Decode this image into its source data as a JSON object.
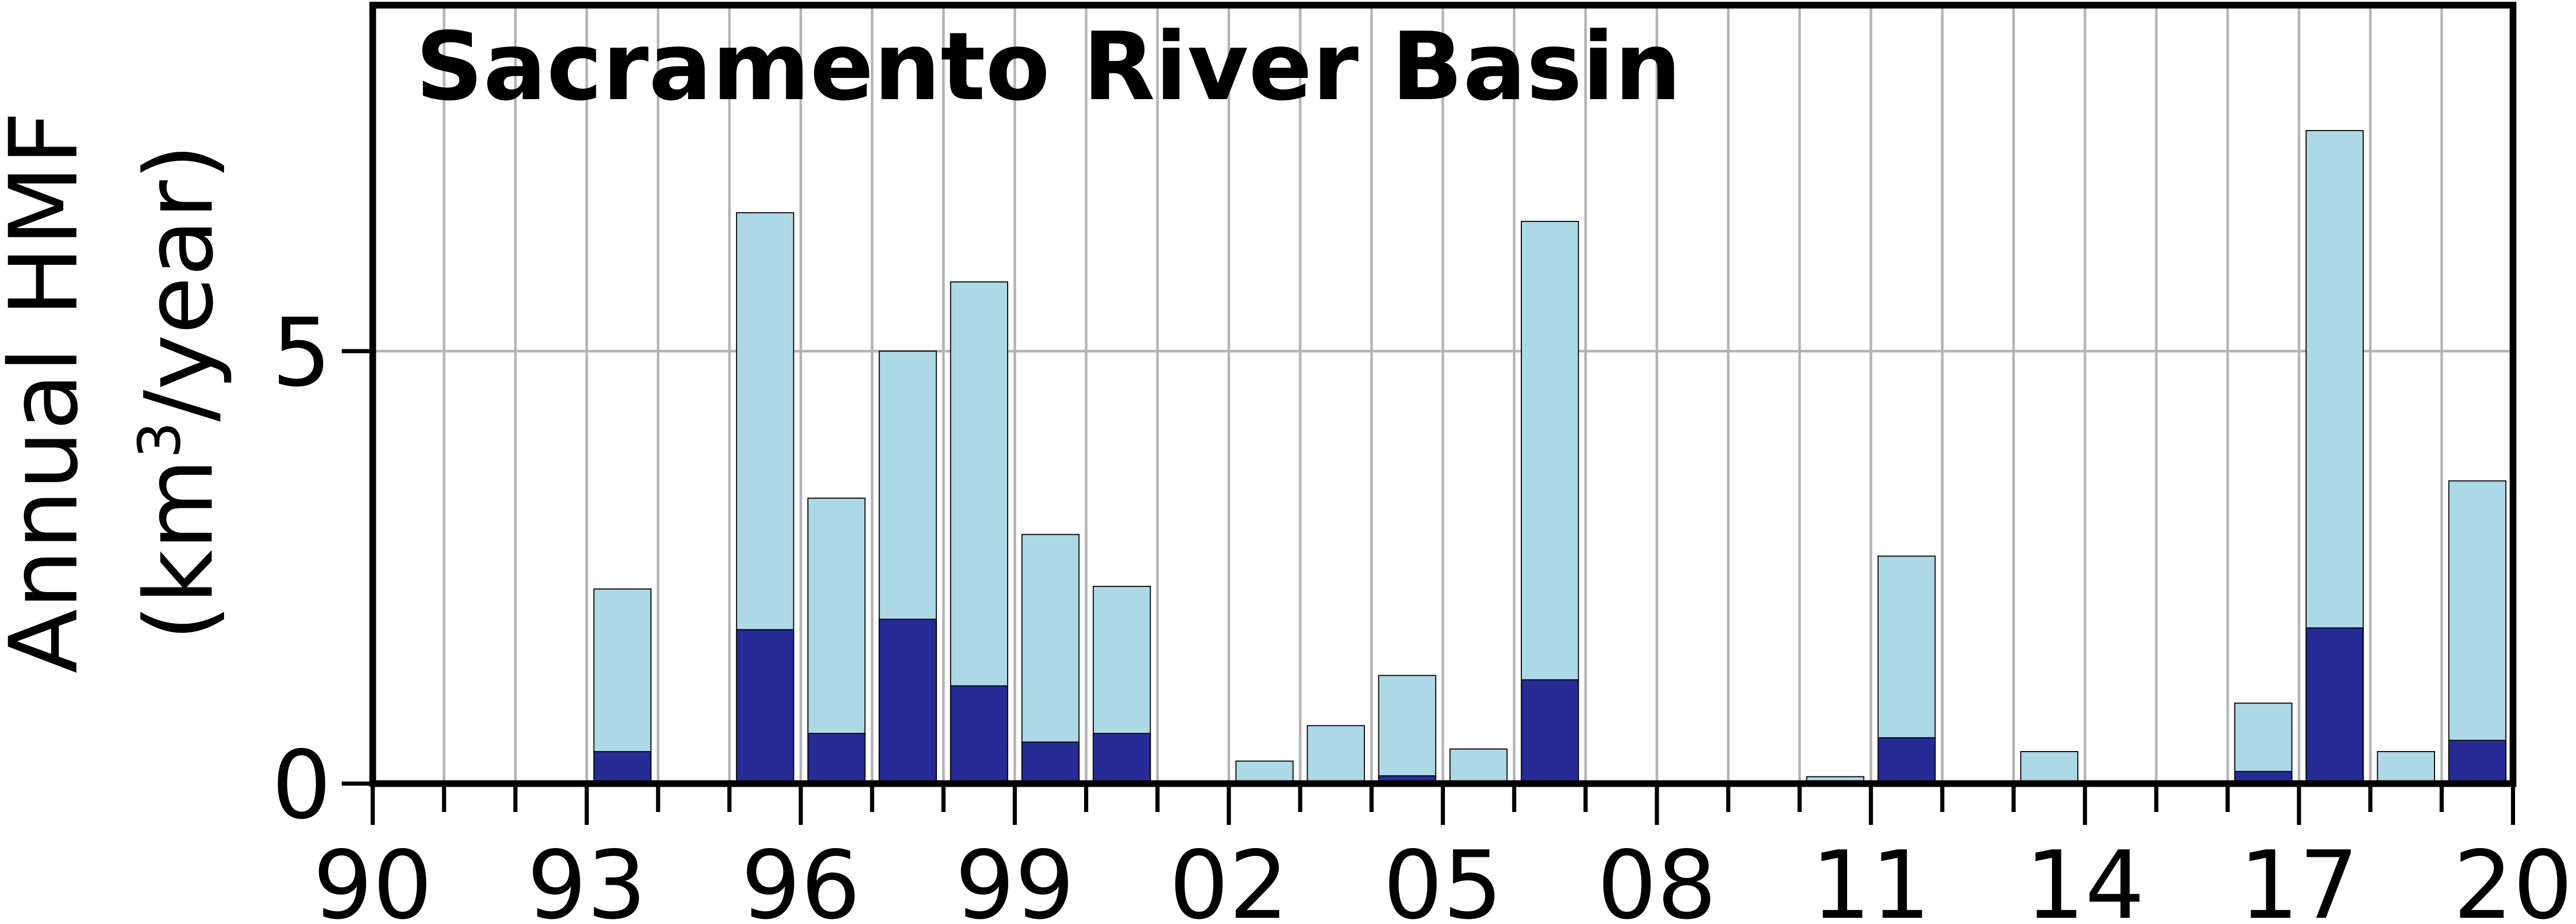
{
  "chart_data": {
    "type": "bar",
    "title": "Sacramento River Basin",
    "ylabel_line1": "Annual HMF",
    "ylabel_line2_pre": "(km",
    "ylabel_line2_sup": "3",
    "ylabel_line2_post": "/year)",
    "xlabel": "",
    "xlim": [
      1990,
      2020
    ],
    "ylim": [
      0,
      9
    ],
    "grid": true,
    "x_tick_values": [
      1990,
      1993,
      1996,
      1999,
      2002,
      2005,
      2008,
      2011,
      2014,
      2017,
      2020
    ],
    "x_tick_labels": [
      "90",
      "93",
      "96",
      "99",
      "02",
      "05",
      "08",
      "11",
      "14",
      "17",
      "20"
    ],
    "y_tick_values": [
      0,
      5
    ],
    "y_tick_labels": [
      "0",
      "5"
    ],
    "years": [
      1990,
      1991,
      1992,
      1993,
      1994,
      1995,
      1996,
      1997,
      1998,
      1999,
      2000,
      2001,
      2002,
      2003,
      2004,
      2005,
      2006,
      2007,
      2008,
      2009,
      2010,
      2011,
      2012,
      2013,
      2014,
      2015,
      2016,
      2017,
      2018,
      2019
    ],
    "series": [
      {
        "color": "#add8e6",
        "values": [
          0,
          0,
          0,
          2.25,
          0,
          6.6,
          3.3,
          5.0,
          5.8,
          2.88,
          2.28,
          0,
          0.26,
          0.67,
          1.25,
          0.4,
          6.5,
          0,
          0,
          0,
          0.08,
          2.63,
          0,
          0.37,
          0,
          0,
          0.93,
          7.55,
          0.37,
          3.5
        ]
      },
      {
        "color": "#262b96",
        "values": [
          0,
          0,
          0,
          0.37,
          0,
          1.78,
          0.58,
          1.9,
          1.13,
          0.48,
          0.58,
          0,
          0,
          0,
          0.09,
          0,
          1.2,
          0,
          0,
          0,
          0,
          0.53,
          0,
          0,
          0,
          0,
          0.14,
          1.8,
          0,
          0.5
        ]
      }
    ]
  }
}
